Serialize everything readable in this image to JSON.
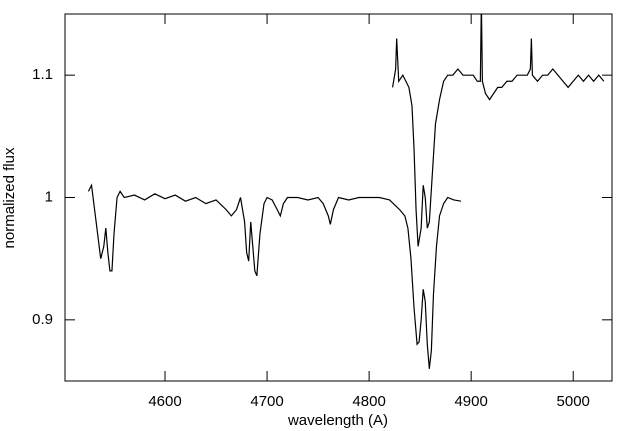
{
  "chart_data": {
    "type": "line",
    "xlabel": "wavelength (A)",
    "ylabel": "normalized  flux",
    "xlim": [
      4502,
      5038
    ],
    "ylim": [
      0.85,
      1.15
    ],
    "xticks": [
      4600,
      4700,
      4800,
      4900,
      5000
    ],
    "yticks": [
      0.9,
      1.0,
      1.1
    ],
    "series": [
      {
        "color": "#000000",
        "x": [
          4525,
          4528,
          4531,
          4534,
          4537,
          4540,
          4542,
          4544,
          4546,
          4548,
          4550,
          4553,
          4556,
          4560,
          4570,
          4580,
          4590,
          4600,
          4610,
          4620,
          4630,
          4640,
          4650,
          4660,
          4665,
          4670,
          4674,
          4678,
          4680,
          4682,
          4684,
          4686,
          4688,
          4690,
          4693,
          4697,
          4700,
          4705,
          4710,
          4713,
          4716,
          4720,
          4730,
          4740,
          4750,
          4755,
          4760,
          4762,
          4765,
          4770,
          4780,
          4790,
          4800,
          4810,
          4820,
          4830,
          4835,
          4838,
          4841,
          4844,
          4847,
          4849,
          4851,
          4853,
          4855,
          4857,
          4859,
          4861,
          4863,
          4866,
          4869,
          4873,
          4877,
          4883,
          4890
        ],
        "values": [
          1.005,
          1.01,
          0.99,
          0.97,
          0.95,
          0.96,
          0.975,
          0.955,
          0.94,
          0.94,
          0.97,
          1.0,
          1.005,
          1.0,
          1.002,
          0.998,
          1.003,
          0.999,
          1.002,
          0.997,
          1.0,
          0.995,
          0.998,
          0.99,
          0.985,
          0.99,
          1.0,
          0.98,
          0.955,
          0.948,
          0.98,
          0.96,
          0.94,
          0.936,
          0.97,
          0.995,
          1.0,
          0.998,
          0.99,
          0.985,
          0.995,
          1.0,
          1.0,
          0.998,
          1.0,
          0.995,
          0.985,
          0.978,
          0.99,
          1.0,
          0.998,
          1.0,
          1.0,
          1.0,
          0.998,
          0.99,
          0.985,
          0.975,
          0.95,
          0.91,
          0.88,
          0.882,
          0.9,
          0.925,
          0.915,
          0.88,
          0.86,
          0.875,
          0.92,
          0.96,
          0.985,
          0.995,
          1.0,
          0.998,
          0.997
        ]
      },
      {
        "color": "#000000",
        "x": [
          4823,
          4826,
          4827,
          4829,
          4833,
          4836,
          4839,
          4842,
          4844,
          4846,
          4848,
          4851,
          4853,
          4855,
          4857,
          4859,
          4862,
          4865,
          4869,
          4873,
          4877,
          4882,
          4887,
          4892,
          4897,
          4902,
          4906,
          4909,
          4910,
          4911,
          4914,
          4918,
          4922,
          4926,
          4930,
          4935,
          4940,
          4945,
          4950,
          4955,
          4958,
          4959,
          4960,
          4965,
          4970,
          4975,
          4980,
          4985,
          4990,
          4995,
          5000,
          5005,
          5010,
          5015,
          5020,
          5025,
          5030
        ],
        "values": [
          1.09,
          1.105,
          1.13,
          1.095,
          1.1,
          1.095,
          1.09,
          1.075,
          1.04,
          0.99,
          0.96,
          0.975,
          1.01,
          1.0,
          0.975,
          0.98,
          1.02,
          1.06,
          1.08,
          1.095,
          1.1,
          1.1,
          1.105,
          1.1,
          1.1,
          1.1,
          1.095,
          1.095,
          1.16,
          1.095,
          1.085,
          1.08,
          1.085,
          1.09,
          1.09,
          1.095,
          1.095,
          1.1,
          1.1,
          1.1,
          1.105,
          1.13,
          1.1,
          1.095,
          1.1,
          1.1,
          1.105,
          1.1,
          1.095,
          1.09,
          1.095,
          1.1,
          1.095,
          1.1,
          1.095,
          1.1,
          1.095
        ]
      }
    ]
  }
}
